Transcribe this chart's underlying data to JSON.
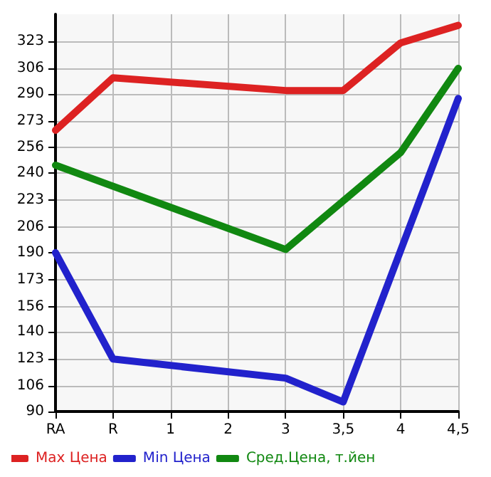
{
  "chart_data": {
    "type": "line",
    "categories": [
      "RA",
      "R",
      "1",
      "2",
      "3",
      "3,5",
      "4",
      "4,5"
    ],
    "series": [
      {
        "name": "Max Цена",
        "color": "#dd2222",
        "values": [
          267,
          300,
          null,
          null,
          292,
          292,
          322,
          333
        ]
      },
      {
        "name": "Min Цена",
        "color": "#2222cc",
        "values": [
          190,
          123,
          null,
          null,
          111,
          96,
          null,
          287
        ]
      },
      {
        "name": "Сред.Цена, т.йен",
        "color": "#118811",
        "values": [
          245,
          null,
          null,
          null,
          192,
          null,
          253,
          306
        ]
      }
    ],
    "ylim": [
      90,
      340
    ],
    "yticks": [
      90,
      106,
      123,
      140,
      156,
      173,
      190,
      206,
      223,
      240,
      256,
      273,
      290,
      306,
      323
    ],
    "grid": true,
    "legend": "bottom",
    "marker": "none",
    "line_style": "solid"
  }
}
